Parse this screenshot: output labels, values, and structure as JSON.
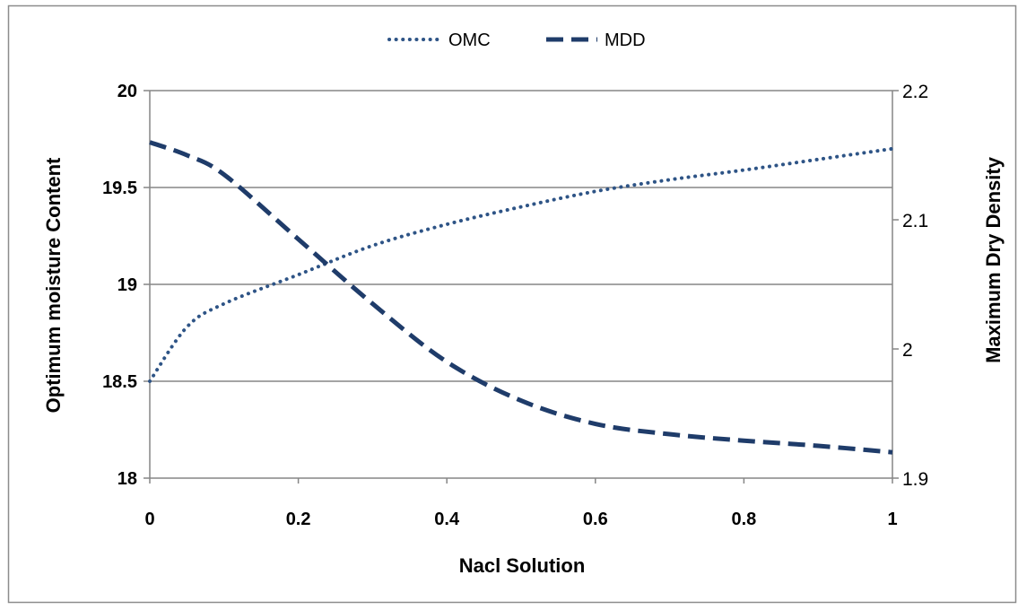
{
  "chart_data": {
    "type": "line",
    "title": "",
    "xlabel": "Nacl Solution",
    "ylabel": "Optimum moisture Content",
    "y2label": "Maximum Dry Density",
    "xlim": [
      0,
      1
    ],
    "ylim": [
      18,
      20
    ],
    "y2lim": [
      1.9,
      2.2
    ],
    "x_ticks": [
      "0",
      "0.2",
      "0.4",
      "0.6",
      "0.8",
      "1"
    ],
    "y_ticks": [
      "18",
      "18.5",
      "19",
      "19.5",
      "20"
    ],
    "y2_ticks": [
      "1.9",
      "2",
      "2.1",
      "2.2"
    ],
    "grid": "horizontal",
    "legend_position": "top",
    "series": [
      {
        "name": "OMC",
        "axis": "left",
        "style": "dotted",
        "color": "#2e5486",
        "x": [
          0,
          0.05,
          0.1,
          0.2,
          0.3,
          0.4,
          0.5,
          0.6,
          0.7,
          0.8,
          0.9,
          1.0
        ],
        "y": [
          18.5,
          18.78,
          18.9,
          19.05,
          19.2,
          19.31,
          19.4,
          19.48,
          19.54,
          19.59,
          19.645,
          19.7
        ]
      },
      {
        "name": "MDD",
        "axis": "right",
        "style": "dashed",
        "color": "#1f3c6a",
        "x": [
          0,
          0.05,
          0.1,
          0.2,
          0.3,
          0.4,
          0.5,
          0.6,
          0.7,
          0.8,
          0.9,
          1.0
        ],
        "y": [
          2.16,
          2.15,
          2.135,
          2.085,
          2.035,
          1.99,
          1.96,
          1.942,
          1.934,
          1.929,
          1.925,
          1.92
        ]
      }
    ]
  }
}
